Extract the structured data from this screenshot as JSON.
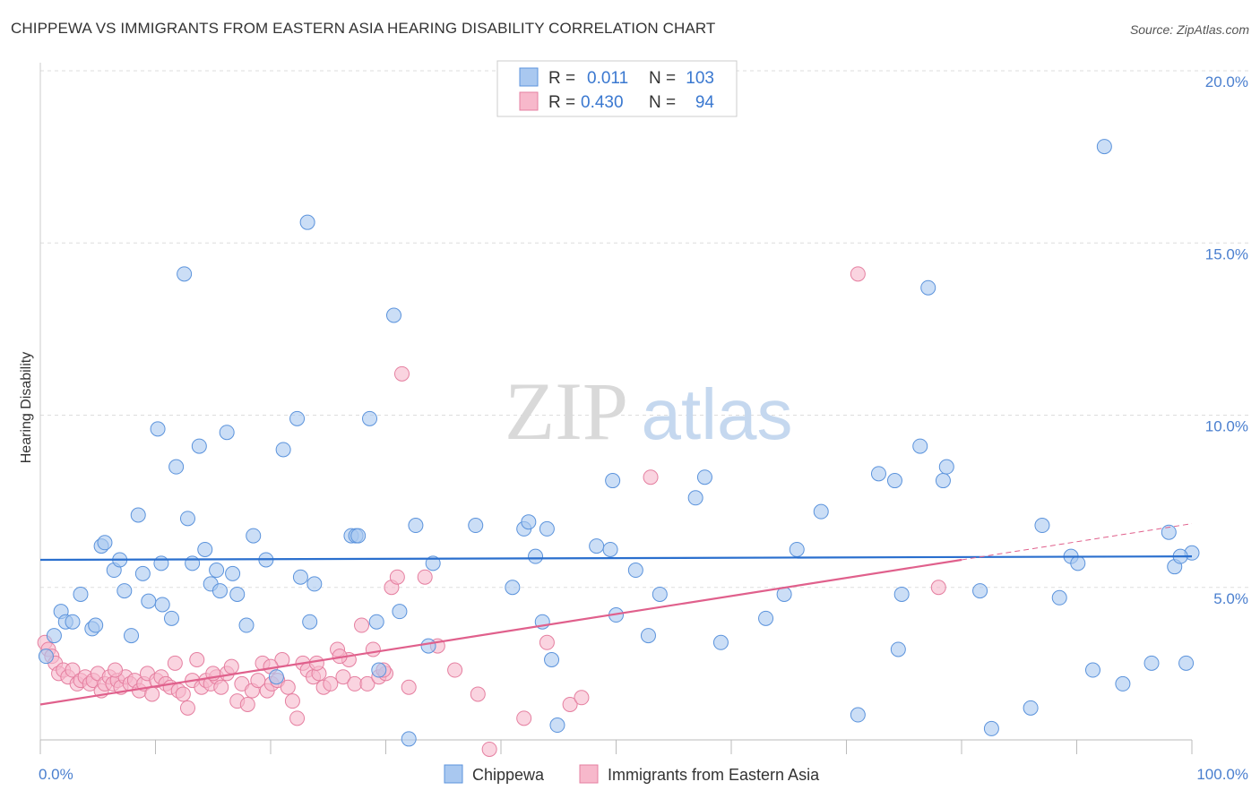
{
  "title": "CHIPPEWA VS IMMIGRANTS FROM EASTERN ASIA HEARING DISABILITY CORRELATION CHART",
  "source": "Source: ZipAtlas.com",
  "watermark": {
    "zip": "ZIP",
    "atlas": "atlas"
  },
  "colors": {
    "chippewa_fill": "#a9c8f0",
    "chippewa_stroke": "#5b93dc",
    "chippewa_line": "#2a6fce",
    "eastasia_fill": "#f7b8cb",
    "eastasia_stroke": "#e57fa0",
    "eastasia_line": "#e0608c",
    "grid": "#dddddd",
    "axis_text": "#4a7fcf"
  },
  "legend": {
    "rows": [
      {
        "r_label": "R =",
        "r_value": "0.011",
        "n_label": "N =",
        "n_value": "103"
      },
      {
        "r_label": "R =",
        "r_value": "0.430",
        "n_label": "N =",
        "n_value": "94"
      }
    ]
  },
  "bottom_legend": [
    "Chippewa",
    "Immigrants from Eastern Asia"
  ],
  "chart_data": {
    "type": "scatter",
    "title": "CHIPPEWA VS IMMIGRANTS FROM EASTERN ASIA HEARING DISABILITY CORRELATION CHART",
    "xlabel": "",
    "ylabel": "Hearing Disability",
    "xlim": [
      0,
      100
    ],
    "ylim": [
      0,
      20
    ],
    "x_tick_labels": [
      "0.0%",
      "100.0%"
    ],
    "y_ticks": [
      5,
      10,
      15,
      20
    ],
    "y_tick_labels": [
      "5.0%",
      "10.0%",
      "15.0%",
      "20.0%"
    ],
    "grid": true,
    "legend_position": "top-center",
    "series": [
      {
        "name": "Chippewa",
        "R": 0.011,
        "N": 103,
        "trend": {
          "x0": 0,
          "y0": 5.8,
          "x1": 100,
          "y1": 5.9
        },
        "points": [
          [
            0.5,
            3.0
          ],
          [
            1.2,
            3.6
          ],
          [
            1.8,
            4.3
          ],
          [
            2.2,
            4.0
          ],
          [
            2.8,
            4.0
          ],
          [
            3.5,
            4.8
          ],
          [
            4.5,
            3.8
          ],
          [
            4.8,
            3.9
          ],
          [
            5.3,
            6.2
          ],
          [
            5.6,
            6.3
          ],
          [
            6.4,
            5.5
          ],
          [
            6.9,
            5.8
          ],
          [
            7.3,
            4.9
          ],
          [
            7.9,
            3.6
          ],
          [
            8.5,
            7.1
          ],
          [
            8.9,
            5.4
          ],
          [
            9.4,
            4.6
          ],
          [
            10.2,
            9.6
          ],
          [
            10.5,
            5.7
          ],
          [
            10.6,
            4.5
          ],
          [
            11.4,
            4.1
          ],
          [
            11.8,
            8.5
          ],
          [
            12.5,
            14.1
          ],
          [
            12.8,
            7.0
          ],
          [
            13.2,
            5.7
          ],
          [
            13.8,
            9.1
          ],
          [
            14.3,
            6.1
          ],
          [
            14.8,
            5.1
          ],
          [
            15.3,
            5.5
          ],
          [
            15.6,
            4.9
          ],
          [
            16.2,
            9.5
          ],
          [
            16.7,
            5.4
          ],
          [
            17.1,
            4.8
          ],
          [
            17.9,
            3.9
          ],
          [
            18.5,
            6.5
          ],
          [
            19.6,
            5.8
          ],
          [
            20.5,
            2.4
          ],
          [
            21.1,
            9.0
          ],
          [
            22.3,
            9.9
          ],
          [
            22.6,
            5.3
          ],
          [
            23.2,
            15.6
          ],
          [
            23.4,
            4.0
          ],
          [
            23.8,
            5.1
          ],
          [
            27.0,
            6.5
          ],
          [
            27.4,
            6.5
          ],
          [
            27.6,
            6.5
          ],
          [
            28.6,
            9.9
          ],
          [
            29.2,
            4.0
          ],
          [
            29.4,
            2.6
          ],
          [
            30.7,
            12.9
          ],
          [
            31.2,
            4.3
          ],
          [
            32.0,
            0.6
          ],
          [
            32.6,
            6.8
          ],
          [
            33.7,
            3.3
          ],
          [
            34.1,
            5.7
          ],
          [
            37.8,
            6.8
          ],
          [
            41.0,
            5.0
          ],
          [
            42.0,
            6.7
          ],
          [
            42.4,
            6.9
          ],
          [
            43.0,
            5.9
          ],
          [
            43.6,
            4.0
          ],
          [
            44.0,
            6.7
          ],
          [
            44.4,
            2.9
          ],
          [
            44.9,
            1.0
          ],
          [
            48.3,
            6.2
          ],
          [
            49.5,
            6.1
          ],
          [
            49.7,
            8.1
          ],
          [
            50.0,
            4.2
          ],
          [
            51.7,
            5.5
          ],
          [
            52.8,
            3.6
          ],
          [
            53.8,
            4.8
          ],
          [
            56.9,
            7.6
          ],
          [
            57.7,
            8.2
          ],
          [
            59.1,
            3.4
          ],
          [
            63.0,
            4.1
          ],
          [
            64.6,
            4.8
          ],
          [
            65.7,
            6.1
          ],
          [
            67.8,
            7.2
          ],
          [
            71.0,
            1.3
          ],
          [
            72.8,
            8.3
          ],
          [
            74.2,
            8.1
          ],
          [
            74.5,
            3.2
          ],
          [
            74.8,
            4.8
          ],
          [
            76.4,
            9.1
          ],
          [
            77.1,
            13.7
          ],
          [
            78.4,
            8.1
          ],
          [
            78.7,
            8.5
          ],
          [
            81.6,
            4.9
          ],
          [
            82.6,
            0.9
          ],
          [
            86.0,
            1.5
          ],
          [
            87.0,
            6.8
          ],
          [
            88.5,
            4.7
          ],
          [
            89.5,
            5.9
          ],
          [
            90.1,
            5.7
          ],
          [
            91.4,
            2.6
          ],
          [
            92.4,
            17.8
          ],
          [
            94.0,
            2.2
          ],
          [
            96.5,
            2.8
          ],
          [
            98.0,
            6.6
          ],
          [
            98.5,
            5.6
          ],
          [
            99.5,
            2.8
          ],
          [
            100.0,
            6.0
          ],
          [
            99.0,
            5.9
          ]
        ]
      },
      {
        "name": "Immigrants from Eastern Asia",
        "R": 0.43,
        "N": 94,
        "trend": {
          "x0": 0,
          "y0": 1.6,
          "x1": 80,
          "y1": 5.8
        },
        "trend_dashed": {
          "x0": 80,
          "y0": 5.8,
          "x1": 100,
          "y1": 6.85
        },
        "points": [
          [
            0.4,
            3.4
          ],
          [
            0.7,
            3.2
          ],
          [
            1.0,
            3.0
          ],
          [
            1.3,
            2.8
          ],
          [
            1.6,
            2.5
          ],
          [
            2.0,
            2.6
          ],
          [
            2.4,
            2.4
          ],
          [
            2.8,
            2.6
          ],
          [
            3.2,
            2.2
          ],
          [
            3.5,
            2.3
          ],
          [
            3.9,
            2.4
          ],
          [
            4.3,
            2.2
          ],
          [
            4.6,
            2.3
          ],
          [
            5.0,
            2.5
          ],
          [
            5.3,
            2.0
          ],
          [
            5.6,
            2.2
          ],
          [
            6.0,
            2.4
          ],
          [
            6.3,
            2.2
          ],
          [
            6.7,
            2.3
          ],
          [
            7.0,
            2.1
          ],
          [
            7.4,
            2.4
          ],
          [
            7.8,
            2.2
          ],
          [
            8.2,
            2.3
          ],
          [
            8.6,
            2.0
          ],
          [
            9.0,
            2.2
          ],
          [
            9.3,
            2.5
          ],
          [
            9.7,
            1.9
          ],
          [
            10.1,
            2.3
          ],
          [
            10.5,
            2.4
          ],
          [
            10.9,
            2.2
          ],
          [
            11.3,
            2.1
          ],
          [
            11.7,
            2.8
          ],
          [
            12.0,
            2.0
          ],
          [
            12.4,
            1.9
          ],
          [
            12.8,
            1.5
          ],
          [
            13.2,
            2.3
          ],
          [
            13.6,
            2.9
          ],
          [
            14.0,
            2.1
          ],
          [
            14.4,
            2.3
          ],
          [
            14.8,
            2.2
          ],
          [
            15.3,
            2.4
          ],
          [
            15.7,
            2.1
          ],
          [
            16.2,
            2.5
          ],
          [
            16.6,
            2.7
          ],
          [
            17.1,
            1.7
          ],
          [
            17.5,
            2.2
          ],
          [
            18.0,
            1.6
          ],
          [
            18.4,
            2.0
          ],
          [
            18.9,
            2.3
          ],
          [
            19.3,
            2.8
          ],
          [
            19.7,
            2.0
          ],
          [
            20.1,
            2.2
          ],
          [
            20.6,
            2.3
          ],
          [
            21.0,
            2.9
          ],
          [
            21.5,
            2.1
          ],
          [
            21.9,
            1.7
          ],
          [
            22.3,
            1.2
          ],
          [
            22.8,
            2.8
          ],
          [
            23.2,
            2.6
          ],
          [
            23.7,
            2.4
          ],
          [
            24.2,
            2.5
          ],
          [
            24.6,
            2.1
          ],
          [
            25.2,
            2.2
          ],
          [
            25.8,
            3.2
          ],
          [
            26.3,
            2.4
          ],
          [
            26.8,
            2.9
          ],
          [
            27.3,
            2.2
          ],
          [
            27.9,
            3.9
          ],
          [
            28.4,
            2.2
          ],
          [
            28.9,
            3.2
          ],
          [
            29.4,
            2.4
          ],
          [
            30.0,
            2.5
          ],
          [
            30.5,
            5.0
          ],
          [
            31.0,
            5.3
          ],
          [
            31.4,
            11.2
          ],
          [
            32.0,
            2.1
          ],
          [
            34.5,
            3.3
          ],
          [
            36.0,
            2.6
          ],
          [
            38.0,
            1.9
          ],
          [
            39.0,
            0.3
          ],
          [
            42.0,
            1.2
          ],
          [
            44.0,
            3.4
          ],
          [
            46.0,
            1.6
          ],
          [
            47.0,
            1.8
          ],
          [
            53.0,
            8.2
          ],
          [
            71.0,
            14.1
          ],
          [
            78.0,
            5.0
          ],
          [
            33.4,
            5.3
          ],
          [
            29.8,
            2.6
          ],
          [
            26.0,
            3.0
          ],
          [
            24.0,
            2.8
          ],
          [
            20.0,
            2.7
          ],
          [
            15.0,
            2.5
          ],
          [
            6.5,
            2.6
          ]
        ]
      }
    ]
  }
}
